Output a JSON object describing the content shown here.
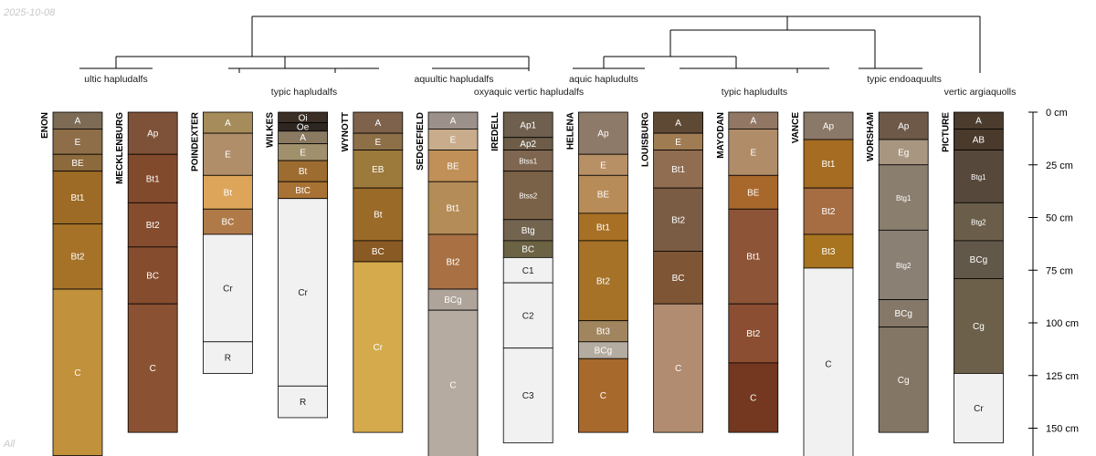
{
  "date_stamp": "2025-10-08",
  "footer_label": "All",
  "depth_axis": {
    "unit": "cm",
    "ticks": [
      {
        "value": 0,
        "label": "0 cm"
      },
      {
        "value": 25,
        "label": "25 cm"
      },
      {
        "value": 50,
        "label": "50 cm"
      },
      {
        "value": 75,
        "label": "75 cm"
      },
      {
        "value": 100,
        "label": "100 cm"
      },
      {
        "value": 125,
        "label": "125 cm"
      },
      {
        "value": 150,
        "label": "150 cm"
      }
    ]
  },
  "group_labels": [
    "ultic hapludalfs",
    "typic hapludalfs",
    "aquultic hapludalfs",
    "oxyaquic vertic hapludalfs",
    "aquic hapludults",
    "typic hapludults",
    "typic endoaquults",
    "vertic argiaquolls"
  ],
  "profiles": [
    {
      "name": "ENON",
      "horizons": [
        {
          "name": "A",
          "top": 0,
          "bottom": 8,
          "color": "#7d6b55"
        },
        {
          "name": "E",
          "top": 8,
          "bottom": 20,
          "color": "#8d6e48"
        },
        {
          "name": "BE",
          "top": 20,
          "bottom": 28,
          "color": "#8c6a3c"
        },
        {
          "name": "Bt1",
          "top": 28,
          "bottom": 53,
          "color": "#9d6b26"
        },
        {
          "name": "Bt2",
          "top": 53,
          "bottom": 84,
          "color": "#a57228"
        },
        {
          "name": "C",
          "top": 84,
          "bottom": 163,
          "color": "#c1913c"
        }
      ]
    },
    {
      "name": "MECKLENBURG",
      "horizons": [
        {
          "name": "Ap",
          "top": 0,
          "bottom": 20,
          "color": "#7e5238"
        },
        {
          "name": "Bt1",
          "top": 20,
          "bottom": 43,
          "color": "#824a2c"
        },
        {
          "name": "Bt2",
          "top": 43,
          "bottom": 64,
          "color": "#854c2e"
        },
        {
          "name": "BC",
          "top": 64,
          "bottom": 91,
          "color": "#854c2e"
        },
        {
          "name": "C",
          "top": 91,
          "bottom": 152,
          "color": "#8a5232"
        }
      ]
    },
    {
      "name": "POINDEXTER",
      "horizons": [
        {
          "name": "A",
          "top": 0,
          "bottom": 10,
          "color": "#a68c5a"
        },
        {
          "name": "E",
          "top": 10,
          "bottom": 30,
          "color": "#b08e69"
        },
        {
          "name": "Bt",
          "top": 30,
          "bottom": 46,
          "color": "#dca55a"
        },
        {
          "name": "BC",
          "top": 46,
          "bottom": 58,
          "color": "#b07a48"
        },
        {
          "name": "Cr",
          "top": 58,
          "bottom": 109,
          "color": "#f1f1f1"
        },
        {
          "name": "R",
          "top": 109,
          "bottom": 124,
          "color": "#f1f1f1"
        }
      ]
    },
    {
      "name": "WILKES",
      "horizons": [
        {
          "name": "Oi",
          "top": 0,
          "bottom": 5,
          "color": "#3c2f26"
        },
        {
          "name": "Oe",
          "top": 5,
          "bottom": 9,
          "color": "#2e2620"
        },
        {
          "name": "A",
          "top": 9,
          "bottom": 15,
          "color": "#8a7a62"
        },
        {
          "name": "E",
          "top": 15,
          "bottom": 23,
          "color": "#a0906c"
        },
        {
          "name": "Bt",
          "top": 23,
          "bottom": 33,
          "color": "#9c6c30"
        },
        {
          "name": "BtC",
          "top": 33,
          "bottom": 41,
          "color": "#a87234"
        },
        {
          "name": "Cr",
          "top": 41,
          "bottom": 130,
          "color": "#f1f1f1"
        },
        {
          "name": "R",
          "top": 130,
          "bottom": 145,
          "color": "#f1f1f1"
        }
      ]
    },
    {
      "name": "WYNOTT",
      "horizons": [
        {
          "name": "A",
          "top": 0,
          "bottom": 10,
          "color": "#7f624c"
        },
        {
          "name": "E",
          "top": 10,
          "bottom": 18,
          "color": "#8e7048"
        },
        {
          "name": "EB",
          "top": 18,
          "bottom": 36,
          "color": "#9c7a3c"
        },
        {
          "name": "Bt",
          "top": 36,
          "bottom": 61,
          "color": "#9a6a28"
        },
        {
          "name": "BC",
          "top": 61,
          "bottom": 71,
          "color": "#8a5a24"
        },
        {
          "name": "Cr",
          "top": 71,
          "bottom": 152,
          "color": "#d4aa4c"
        }
      ]
    },
    {
      "name": "SEDGEFIELD",
      "horizons": [
        {
          "name": "A",
          "top": 0,
          "bottom": 8,
          "color": "#9c918a"
        },
        {
          "name": "E",
          "top": 8,
          "bottom": 18,
          "color": "#c8ac8c"
        },
        {
          "name": "BE",
          "top": 18,
          "bottom": 33,
          "color": "#c19058"
        },
        {
          "name": "Bt1",
          "top": 33,
          "bottom": 58,
          "color": "#b48c58"
        },
        {
          "name": "Bt2",
          "top": 58,
          "bottom": 84,
          "color": "#a87043"
        },
        {
          "name": "BCg",
          "top": 84,
          "bottom": 94,
          "color": "#aea49a"
        },
        {
          "name": "C",
          "top": 94,
          "bottom": 165,
          "color": "#b5aba0"
        }
      ]
    },
    {
      "name": "IREDELL",
      "horizons": [
        {
          "name": "Ap1",
          "top": 0,
          "bottom": 12,
          "color": "#6e5f4e"
        },
        {
          "name": "Ap2",
          "top": 12,
          "bottom": 18,
          "color": "#6c5c48"
        },
        {
          "name": "Btss1",
          "top": 18,
          "bottom": 28,
          "color": "#7e6650"
        },
        {
          "name": "Btss2",
          "top": 28,
          "bottom": 51,
          "color": "#7a6248"
        },
        {
          "name": "Btg",
          "top": 51,
          "bottom": 61,
          "color": "#736450"
        },
        {
          "name": "BC",
          "top": 61,
          "bottom": 69,
          "color": "#6c6244"
        },
        {
          "name": "C1",
          "top": 69,
          "bottom": 81,
          "color": "#f1f1f1"
        },
        {
          "name": "C2",
          "top": 81,
          "bottom": 112,
          "color": "#f1f1f1"
        },
        {
          "name": "C3",
          "top": 112,
          "bottom": 157,
          "color": "#f1f1f1"
        }
      ]
    },
    {
      "name": "HELENA",
      "horizons": [
        {
          "name": "Ap",
          "top": 0,
          "bottom": 20,
          "color": "#8e7a68"
        },
        {
          "name": "E",
          "top": 20,
          "bottom": 30,
          "color": "#b89066"
        },
        {
          "name": "BE",
          "top": 30,
          "bottom": 48,
          "color": "#b88c58"
        },
        {
          "name": "Bt1",
          "top": 48,
          "bottom": 61,
          "color": "#a87024"
        },
        {
          "name": "Bt2",
          "top": 61,
          "bottom": 99,
          "color": "#a57228"
        },
        {
          "name": "Bt3",
          "top": 99,
          "bottom": 109,
          "color": "#a0855f"
        },
        {
          "name": "BCg",
          "top": 109,
          "bottom": 117,
          "color": "#b4aca0"
        },
        {
          "name": "C",
          "top": 117,
          "bottom": 152,
          "color": "#a8692c"
        }
      ]
    },
    {
      "name": "LOUISBURG",
      "horizons": [
        {
          "name": "A",
          "top": 0,
          "bottom": 10,
          "color": "#5e4a34"
        },
        {
          "name": "E",
          "top": 10,
          "bottom": 18,
          "color": "#a07c52"
        },
        {
          "name": "Bt1",
          "top": 18,
          "bottom": 36,
          "color": "#906c50"
        },
        {
          "name": "Bt2",
          "top": 36,
          "bottom": 66,
          "color": "#7a5c44"
        },
        {
          "name": "BC",
          "top": 66,
          "bottom": 91,
          "color": "#7e5636"
        },
        {
          "name": "C",
          "top": 91,
          "bottom": 152,
          "color": "#b28c70"
        }
      ]
    },
    {
      "name": "MAYODAN",
      "horizons": [
        {
          "name": "A",
          "top": 0,
          "bottom": 8,
          "color": "#927864"
        },
        {
          "name": "E",
          "top": 8,
          "bottom": 30,
          "color": "#b08c68"
        },
        {
          "name": "BE",
          "top": 30,
          "bottom": 46,
          "color": "#a8682c"
        },
        {
          "name": "Bt1",
          "top": 46,
          "bottom": 91,
          "color": "#8e5438"
        },
        {
          "name": "Bt2",
          "top": 91,
          "bottom": 119,
          "color": "#8c4e32"
        },
        {
          "name": "C",
          "top": 119,
          "bottom": 152,
          "color": "#74371f"
        }
      ]
    },
    {
      "name": "VANCE",
      "horizons": [
        {
          "name": "Ap",
          "top": 0,
          "bottom": 13,
          "color": "#8a7868"
        },
        {
          "name": "Bt1",
          "top": 13,
          "bottom": 36,
          "color": "#a56c22"
        },
        {
          "name": "Bt2",
          "top": 36,
          "bottom": 58,
          "color": "#a66c42"
        },
        {
          "name": "Bt3",
          "top": 58,
          "bottom": 74,
          "color": "#a8741f"
        },
        {
          "name": "C",
          "top": 74,
          "bottom": 165,
          "color": "#f1f1f1"
        }
      ]
    },
    {
      "name": "WORSHAM",
      "horizons": [
        {
          "name": "Ap",
          "top": 0,
          "bottom": 13,
          "color": "#6e5848"
        },
        {
          "name": "Eg",
          "top": 13,
          "bottom": 25,
          "color": "#a89680"
        },
        {
          "name": "Btg1",
          "top": 25,
          "bottom": 56,
          "color": "#8a7e6e"
        },
        {
          "name": "Btg2",
          "top": 56,
          "bottom": 89,
          "color": "#8a8074"
        },
        {
          "name": "BCg",
          "top": 89,
          "bottom": 102,
          "color": "#867868"
        },
        {
          "name": "Cg",
          "top": 102,
          "bottom": 152,
          "color": "#847664"
        }
      ]
    },
    {
      "name": "PICTURE",
      "horizons": [
        {
          "name": "A",
          "top": 0,
          "bottom": 8,
          "color": "#4c3c2e"
        },
        {
          "name": "AB",
          "top": 8,
          "bottom": 18,
          "color": "#4a3a2c"
        },
        {
          "name": "Btg1",
          "top": 18,
          "bottom": 43,
          "color": "#56483a"
        },
        {
          "name": "Btg2",
          "top": 43,
          "bottom": 61,
          "color": "#6a5e4a"
        },
        {
          "name": "BCg",
          "top": 61,
          "bottom": 79,
          "color": "#62584a"
        },
        {
          "name": "Cg",
          "top": 79,
          "bottom": 124,
          "color": "#6c604a"
        },
        {
          "name": "Cr",
          "top": 124,
          "bottom": 157,
          "color": "#f1f1f1"
        }
      ]
    }
  ]
}
